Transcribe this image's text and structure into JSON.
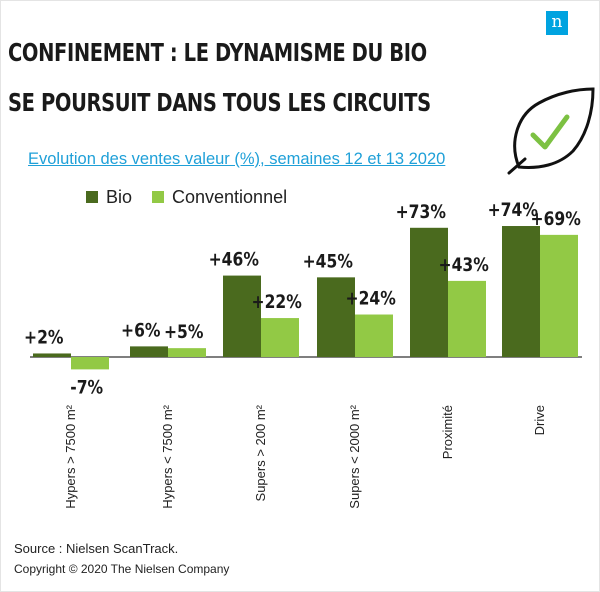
{
  "header": {
    "title_line1": "CONFINEMENT : LE DYNAMISME DU BIO",
    "title_line2": "SE POURSUIT DANS TOUS LES CIRCUITS",
    "logo_letter": "n"
  },
  "colors": {
    "bio": "#4a6a1e",
    "conventionnel": "#92c945",
    "accent": "#00a3e0",
    "leaf_check": "#7cc142"
  },
  "footer": {
    "source": "Source : Nielsen ScanTrack.",
    "copyright": "Copyright © 2020 The Nielsen Company"
  },
  "chart_data": {
    "type": "bar",
    "title": "Evolution des ventes valeur (%), semaines 12 et 13 2020",
    "xlabel": "",
    "ylabel": "",
    "ylim": [
      -7,
      74
    ],
    "legend_position": "top-left",
    "categories": [
      "Hypers > 7500 m²",
      "Hypers < 7500 m²",
      "Supers > 200 m²",
      "Supers < 2000 m²",
      "Proximité",
      "Drive"
    ],
    "series": [
      {
        "name": "Bio",
        "values": [
          2,
          6,
          46,
          45,
          73,
          74
        ],
        "labels": [
          "+2%",
          "+6%",
          "+46%",
          "+45%",
          "+73%",
          "+74%"
        ]
      },
      {
        "name": "Conventionnel",
        "values": [
          -7,
          5,
          22,
          24,
          43,
          69
        ],
        "labels": [
          "-7%",
          "+5%",
          "+22%",
          "+24%",
          "+43%",
          "+69%"
        ]
      }
    ]
  }
}
